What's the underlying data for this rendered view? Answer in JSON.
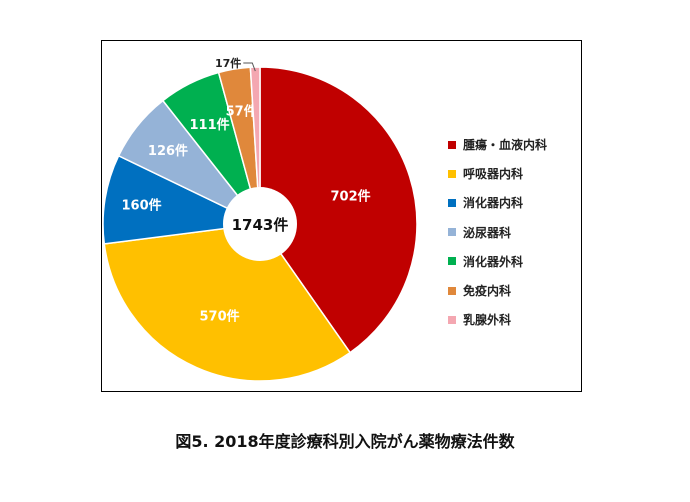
{
  "caption": "図5. 2018年度診療科別入院がん薬物療法件数",
  "chart_data": {
    "type": "pie",
    "center_label": "1743件",
    "unit": "件",
    "slices": [
      {
        "label": "腫瘍・血液内科",
        "value": 702,
        "value_label": "702件",
        "color": "#C00000"
      },
      {
        "label": "呼吸器内科",
        "value": 570,
        "value_label": "570件",
        "color": "#FFC000"
      },
      {
        "label": "消化器内科",
        "value": 160,
        "value_label": "160件",
        "color": "#0070C0"
      },
      {
        "label": "泌尿器科",
        "value": 126,
        "value_label": "126件",
        "color": "#95B3D7"
      },
      {
        "label": "消化器外科",
        "value": 111,
        "value_label": "111件",
        "color": "#00B050"
      },
      {
        "label": "免疫内科",
        "value": 57,
        "value_label": "57件",
        "color": "#E0883B"
      },
      {
        "label": "乳腺外科",
        "value": 17,
        "value_label": "17件",
        "color": "#F4A7B1"
      }
    ],
    "legend_position": "right"
  }
}
